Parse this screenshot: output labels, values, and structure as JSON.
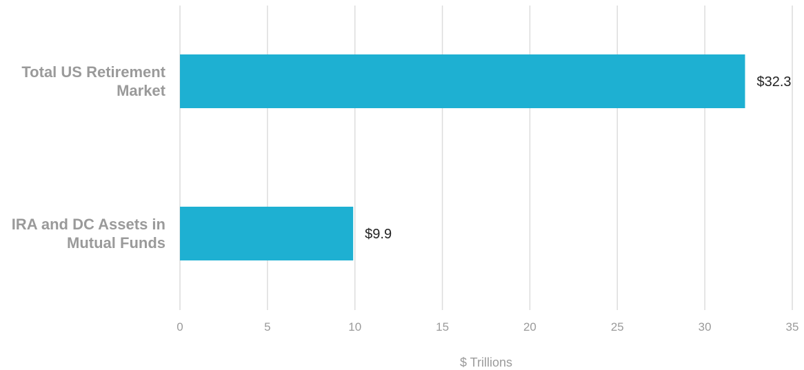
{
  "chart_data": {
    "type": "bar",
    "orientation": "horizontal",
    "categories": [
      [
        "Total US Retirement",
        "Market"
      ],
      [
        "IRA and DC Assets in",
        "Mutual Funds"
      ]
    ],
    "values": [
      32.3,
      9.9
    ],
    "data_labels": [
      "$32.3",
      "$9.9"
    ],
    "xlabel": "$ Trillions",
    "xlim": [
      0,
      35
    ],
    "xticks": [
      0,
      5,
      10,
      15,
      20,
      25,
      30,
      35
    ],
    "grid": true,
    "bar_color": "#1eb0d2"
  }
}
